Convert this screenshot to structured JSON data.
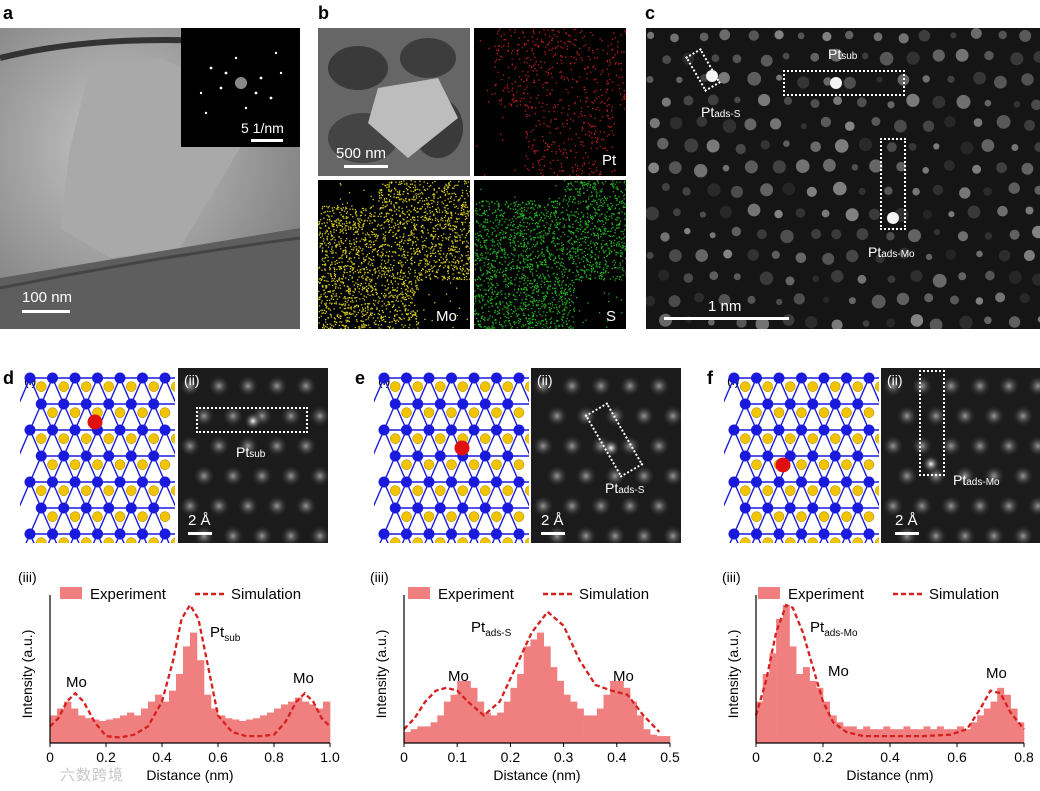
{
  "panels": {
    "a": {
      "letter": "a",
      "scale": "100 nm",
      "inset_scale": "5 1/nm"
    },
    "b": {
      "letter": "b",
      "scale": "500 nm",
      "maps": [
        "Pt",
        "Mo",
        "S"
      ]
    },
    "c": {
      "letter": "c",
      "scale": "1 nm",
      "labels": {
        "sub": {
          "main": "Pt",
          "sub": "sub"
        },
        "adsS": {
          "main": "Pt",
          "sub": "ads-S"
        },
        "adsMo": {
          "main": "Pt",
          "sub": "ads-Mo"
        }
      }
    },
    "d": {
      "letter": "d",
      "i": "(i)",
      "ii": "(ii)",
      "iii": "(iii)",
      "scale": "2 Å",
      "label": {
        "main": "Pt",
        "sub": "sub"
      }
    },
    "e": {
      "letter": "e",
      "i": "(i)",
      "ii": "(ii)",
      "iii": "(iii)",
      "scale": "2 Å",
      "label": {
        "main": "Pt",
        "sub": "ads-S"
      }
    },
    "f": {
      "letter": "f",
      "i": "(i)",
      "ii": "(ii)",
      "iii": "(iii)",
      "scale": "2 Å",
      "label": {
        "main": "Pt",
        "sub": "ads-Mo"
      }
    }
  },
  "colors": {
    "experiment": "#f08080",
    "simulation": "#d62020",
    "mo_atom": "#1a1adc",
    "s_atom": "#f2c400",
    "pt_atom": "#e01010"
  },
  "watermark": "六数跨境",
  "chart_data": [
    {
      "type": "bar",
      "panel": "d(iii)",
      "xlabel": "Distance (nm)",
      "ylabel": "Intensity (a.u.)",
      "xlim": [
        0,
        1.0
      ],
      "xticks": [
        "0",
        "0.2",
        "0.4",
        "0.6",
        "0.8",
        "1.0"
      ],
      "legend": [
        "Experiment",
        "Simulation"
      ],
      "annotations": [
        {
          "text": "Mo",
          "x": 0.09
        },
        {
          "text": "Pt",
          "sub": "sub",
          "x": 0.52
        },
        {
          "text": "Mo",
          "x": 0.92
        }
      ],
      "experiment": {
        "x0": 0.0,
        "dx": 0.025,
        "values": [
          0.2,
          0.25,
          0.3,
          0.25,
          0.2,
          0.18,
          0.17,
          0.16,
          0.17,
          0.18,
          0.2,
          0.22,
          0.2,
          0.25,
          0.3,
          0.35,
          0.3,
          0.38,
          0.5,
          0.7,
          0.8,
          0.6,
          0.35,
          0.25,
          0.2,
          0.18,
          0.17,
          0.16,
          0.17,
          0.18,
          0.2,
          0.22,
          0.25,
          0.28,
          0.3,
          0.33,
          0.3,
          0.28,
          0.25,
          0.3
        ]
      },
      "simulation": {
        "x": [
          0,
          0.03,
          0.06,
          0.09,
          0.12,
          0.16,
          0.2,
          0.25,
          0.3,
          0.35,
          0.4,
          0.44,
          0.47,
          0.5,
          0.53,
          0.56,
          0.6,
          0.65,
          0.7,
          0.75,
          0.8,
          0.84,
          0.88,
          0.91,
          0.94,
          0.97,
          1.0
        ],
        "y": [
          0.12,
          0.18,
          0.3,
          0.36,
          0.3,
          0.15,
          0.05,
          0.04,
          0.06,
          0.12,
          0.3,
          0.6,
          0.9,
          1.0,
          0.9,
          0.6,
          0.2,
          0.08,
          0.05,
          0.05,
          0.06,
          0.15,
          0.3,
          0.36,
          0.3,
          0.18,
          0.12
        ]
      }
    },
    {
      "type": "bar",
      "panel": "e(iii)",
      "xlabel": "Distance (nm)",
      "ylabel": "Intensity (a.u.)",
      "xlim": [
        0,
        0.5
      ],
      "xticks": [
        "0",
        "0.1",
        "0.2",
        "0.3",
        "0.4",
        "0.5"
      ],
      "legend": [
        "Experiment",
        "Simulation"
      ],
      "annotations": [
        {
          "text": "Pt",
          "sub": "ads-S",
          "x": 0.2
        },
        {
          "text": "Mo",
          "x": 0.11
        },
        {
          "text": "Mo",
          "x": 0.41
        }
      ],
      "experiment": {
        "x0": 0.0,
        "dx": 0.0125,
        "values": [
          0.08,
          0.1,
          0.12,
          0.12,
          0.15,
          0.2,
          0.3,
          0.35,
          0.45,
          0.45,
          0.4,
          0.3,
          0.22,
          0.2,
          0.22,
          0.3,
          0.4,
          0.5,
          0.7,
          0.75,
          0.8,
          0.7,
          0.55,
          0.45,
          0.35,
          0.3,
          0.25,
          0.2,
          0.2,
          0.25,
          0.35,
          0.45,
          0.45,
          0.4,
          0.3,
          0.2,
          0.1,
          0.06,
          0.05,
          0.05
        ]
      },
      "simulation": {
        "x": [
          0,
          0.02,
          0.04,
          0.06,
          0.08,
          0.1,
          0.12,
          0.15,
          0.18,
          0.21,
          0.24,
          0.27,
          0.3,
          0.33,
          0.36,
          0.39,
          0.42,
          0.45,
          0.48
        ],
        "y": [
          0.1,
          0.18,
          0.3,
          0.38,
          0.4,
          0.38,
          0.3,
          0.2,
          0.3,
          0.55,
          0.8,
          0.95,
          0.85,
          0.6,
          0.42,
          0.38,
          0.35,
          0.2,
          0.08
        ]
      }
    },
    {
      "type": "bar",
      "panel": "f(iii)",
      "xlabel": "Distance (nm)",
      "ylabel": "Intensity (a.u.)",
      "xlim": [
        0,
        0.8
      ],
      "xticks": [
        "0",
        "0.2",
        "0.4",
        "0.6",
        "0.8"
      ],
      "legend": [
        "Experiment",
        "Simulation"
      ],
      "annotations": [
        {
          "text": "Pt",
          "sub": "ads-Mo",
          "x": 0.1
        },
        {
          "text": "Mo",
          "x": 0.18
        },
        {
          "text": "Mo",
          "x": 0.72
        }
      ],
      "experiment": {
        "x0": 0.0,
        "dx": 0.02,
        "values": [
          0.3,
          0.5,
          0.65,
          0.9,
          1.0,
          0.7,
          0.5,
          0.55,
          0.45,
          0.4,
          0.3,
          0.2,
          0.15,
          0.12,
          0.12,
          0.1,
          0.12,
          0.1,
          0.1,
          0.12,
          0.1,
          0.1,
          0.12,
          0.1,
          0.1,
          0.12,
          0.1,
          0.12,
          0.1,
          0.1,
          0.12,
          0.1,
          0.15,
          0.2,
          0.25,
          0.3,
          0.4,
          0.35,
          0.25,
          0.15,
          0.1
        ]
      },
      "simulation": {
        "x": [
          0,
          0.03,
          0.06,
          0.09,
          0.11,
          0.14,
          0.17,
          0.2,
          0.23,
          0.27,
          0.32,
          0.4,
          0.5,
          0.58,
          0.63,
          0.67,
          0.7,
          0.73,
          0.76,
          0.8
        ],
        "y": [
          0.2,
          0.45,
          0.8,
          1.0,
          0.98,
          0.8,
          0.55,
          0.3,
          0.15,
          0.08,
          0.05,
          0.05,
          0.05,
          0.06,
          0.1,
          0.25,
          0.38,
          0.36,
          0.22,
          0.1
        ]
      }
    }
  ]
}
